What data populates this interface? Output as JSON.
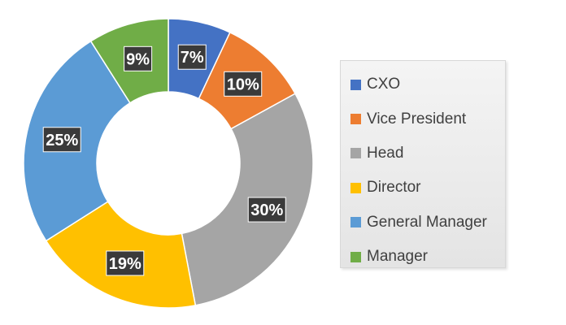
{
  "chart_data": {
    "type": "pie",
    "subtype": "donut",
    "categories": [
      "CXO",
      "Vice President",
      "Head",
      "Director",
      "General Manager",
      "Manager"
    ],
    "values": [
      7,
      10,
      30,
      19,
      25,
      9
    ],
    "labels": [
      "7%",
      "10%",
      "30%",
      "19%",
      "25%",
      "9%"
    ],
    "colors": [
      "#4472C4",
      "#ED7D31",
      "#A5A5A5",
      "#FFC000",
      "#5B9BD5",
      "#70AD47"
    ],
    "title": "",
    "legend_position": "right"
  }
}
